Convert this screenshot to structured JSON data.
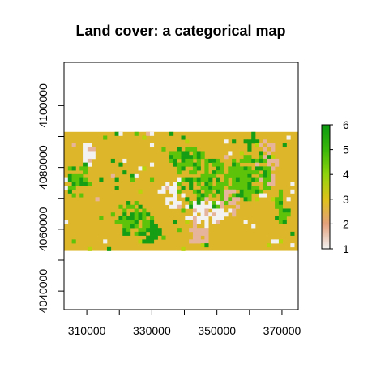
{
  "title": "Land cover: a categorical map",
  "map": {
    "x_ticks": [
      "310000",
      "330000",
      "350000",
      "370000"
    ],
    "x_tick_values": [
      310000,
      330000,
      350000,
      370000
    ],
    "y_ticks": [
      "4040000",
      "4060000",
      "4080000",
      "4100000"
    ],
    "y_tick_values": [
      4040000,
      4060000,
      4080000,
      4100000
    ],
    "xlim": [
      303000,
      375000
    ],
    "ylim": [
      4034000,
      4114000
    ],
    "raster_extent": {
      "xmin": 303000,
      "xmax": 375000,
      "ymin": 4053000,
      "ymax": 4091500
    },
    "dominant_class": 3,
    "legend": {
      "labels": [
        "1",
        "2",
        "3",
        "4",
        "5",
        "6"
      ],
      "values": [
        1,
        2,
        3,
        4,
        5,
        6
      ]
    },
    "class_colors": {
      "1": "#f2f2f2",
      "2": "#e6b49b",
      "3": "#ddb62a",
      "4": "#b8d40a",
      "5": "#5cc30a",
      "6": "#159e15"
    },
    "gradient_colors": [
      "#f2f2f2",
      "#e3a07c",
      "#e0c21a",
      "#8fd40d",
      "#39b70a",
      "#0c9a12"
    ]
  }
}
